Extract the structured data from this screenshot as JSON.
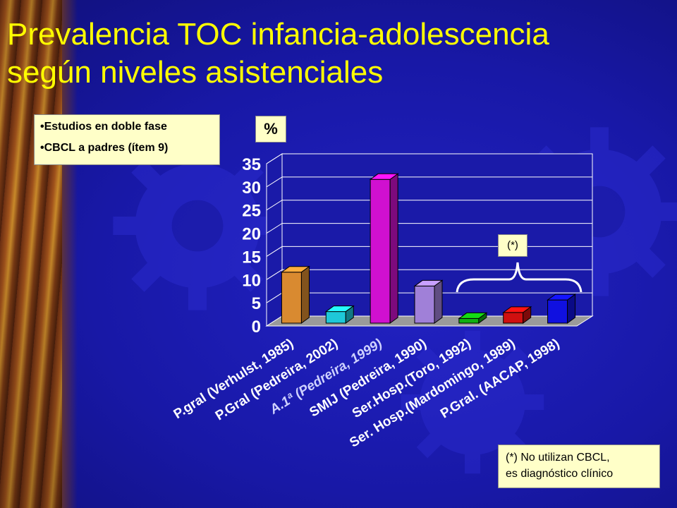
{
  "title_line1": "Prevalencia TOC infancia-adolescencia",
  "title_line2": "según niveles asistenciales",
  "notes": [
    "•Estudios en doble fase",
    "•CBCL a padres (ítem 9)"
  ],
  "unit_label": "%",
  "bracket_label": "(*)",
  "footnote_line1": "(*) No utilizan CBCL,",
  "footnote_line2": "es diagnóstico clínico",
  "colors": {
    "title": "#ffff00",
    "background": "#1a1aa8",
    "label_box": "#ffffc8"
  },
  "chart_data": {
    "type": "bar",
    "title": "",
    "xlabel": "",
    "ylabel": "%",
    "ylim": [
      0,
      35
    ],
    "yticks": [
      0,
      5,
      10,
      15,
      20,
      25,
      30,
      35
    ],
    "grid": true,
    "categories": [
      "P.gral (Verhulst, 1985)",
      "P.Gral (Pedreira, 2002)",
      "A.1ª (Pedreira, 1999)",
      "SMIJ (Pedreira, 1990)",
      "Ser.Hosp.(Toro, 1992)",
      "Ser. Hosp.(Mardomingo, 1989)",
      "P.Gral. (AACAP, 1998)"
    ],
    "values": [
      11,
      2.5,
      31,
      8,
      1,
      2.3,
      5
    ],
    "bar_colors": [
      "#d98a30",
      "#1ec8d8",
      "#d010d0",
      "#a080d8",
      "#10b010",
      "#d01010",
      "#1010e0"
    ]
  }
}
